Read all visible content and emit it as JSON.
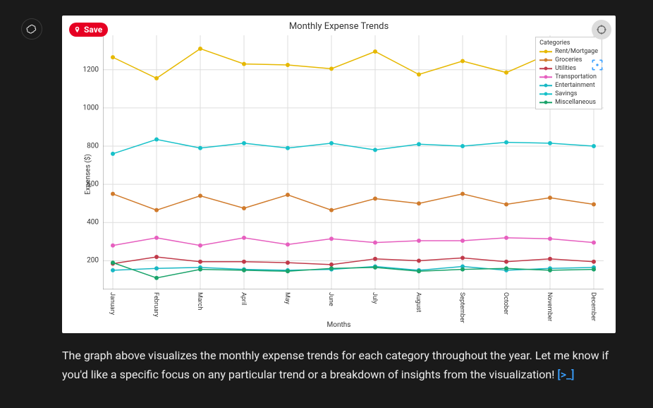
{
  "avatar": {
    "semantic": "openai-logo"
  },
  "save_button": {
    "label": "Save"
  },
  "chart": {
    "type": "line",
    "title": "Monthly Expense Trends",
    "xlabel": "Months",
    "ylabel": "Expenses ($)",
    "background_color": "#ffffff",
    "grid_color": "#dddddd",
    "axis_color": "#333333",
    "tick_fontsize": 10,
    "label_fontsize": 10,
    "title_fontsize": 13,
    "line_width": 1.5,
    "marker_size": 4,
    "xlim": [
      0,
      11
    ],
    "ylim": [
      50,
      1380
    ],
    "yticks": [
      200,
      400,
      600,
      800,
      1000,
      1200
    ],
    "categories": [
      "January",
      "February",
      "March",
      "April",
      "May",
      "June",
      "July",
      "August",
      "September",
      "October",
      "November",
      "December"
    ],
    "legend": {
      "title": "Categories",
      "position": "upper right",
      "border_color": "#cccccc"
    },
    "series": [
      {
        "name": "Rent/Mortgage",
        "color": "#e6b800",
        "values": [
          1265,
          1155,
          1310,
          1230,
          1225,
          1205,
          1295,
          1175,
          1245,
          1185,
          1285,
          1320
        ]
      },
      {
        "name": "Groceries",
        "color": "#d07b2c",
        "values": [
          550,
          465,
          540,
          475,
          545,
          465,
          525,
          500,
          550,
          495,
          530,
          495
        ]
      },
      {
        "name": "Utilities",
        "color": "#c03a4a",
        "values": [
          185,
          220,
          195,
          195,
          190,
          180,
          210,
          200,
          215,
          195,
          210,
          195
        ]
      },
      {
        "name": "Transportation",
        "color": "#e65fbf",
        "values": [
          280,
          320,
          280,
          320,
          285,
          315,
          295,
          305,
          305,
          320,
          315,
          295
        ]
      },
      {
        "name": "Entertainment",
        "color": "#18b7c4",
        "values": [
          150,
          160,
          165,
          155,
          150,
          155,
          170,
          150,
          170,
          150,
          160,
          165
        ]
      },
      {
        "name": "Savings",
        "color": "#17c1c9",
        "values": [
          760,
          835,
          790,
          815,
          790,
          815,
          780,
          810,
          800,
          820,
          815,
          800
        ]
      },
      {
        "name": "Miscellaneous",
        "color": "#1aa36a",
        "values": [
          190,
          110,
          155,
          150,
          145,
          160,
          165,
          145,
          155,
          160,
          150,
          155
        ]
      }
    ]
  },
  "caption": {
    "text": "The graph above visualizes the monthly expense trends for each category throughout the year. Let me know if you'd like a specific focus on any particular trend or a breakdown of insights from the visualization! ",
    "code_badge": "[>_]"
  }
}
